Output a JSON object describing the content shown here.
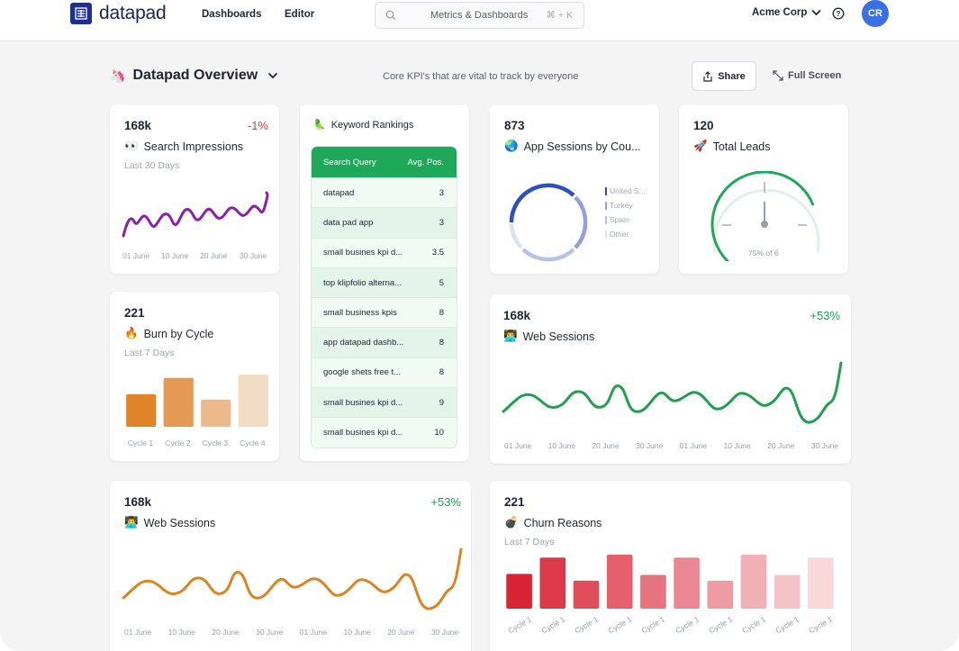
{
  "brand": {
    "name": "datapad",
    "logo_color": "#1e2f8f"
  },
  "nav": {
    "dashboards": "Dashboards",
    "editor": "Editor"
  },
  "search": {
    "placeholder": "Metrics & Dashboards",
    "shortcut": "⌘ + K"
  },
  "org": {
    "name": "Acme Corp"
  },
  "user": {
    "initials": "CR"
  },
  "header": {
    "emoji": "🦄",
    "title": "Datapad Overview",
    "subtitle": "Core KPI's that are vital to track by everyone",
    "share_label": "Share",
    "fullscreen_label": "Full Screen"
  },
  "cards": {
    "search_impressions": {
      "value": "168k",
      "change": "-1%",
      "emoji": "👀",
      "title": "Search Impressions",
      "period": "Last 30 Days",
      "x_labels": [
        "01 June",
        "10 June",
        "20 June",
        "30 June"
      ],
      "color": "#8b1fa9"
    },
    "keyword_rankings": {
      "emoji": "🦜",
      "title": "Keyword Rankings",
      "columns": [
        "Search Query",
        "Avg. Pos."
      ],
      "rows": [
        {
          "query": "datapad",
          "pos": "3"
        },
        {
          "query": "data pad app",
          "pos": "3"
        },
        {
          "query": "small busines kpi d...",
          "pos": "3.5"
        },
        {
          "query": "top klipfolio alterna...",
          "pos": "5"
        },
        {
          "query": "small business kpis",
          "pos": "8"
        },
        {
          "query": "app datapad dashb...",
          "pos": "8"
        },
        {
          "query": "google shets free t...",
          "pos": "8"
        },
        {
          "query": "small busines kpi d...",
          "pos": "9"
        },
        {
          "query": "small busines kpi d...",
          "pos": "10"
        }
      ]
    },
    "app_sessions": {
      "value": "873",
      "emoji": "🌏",
      "title": "App Sessions by Cou...",
      "legend": [
        {
          "label": "United S...",
          "color": "#2f4fc0"
        },
        {
          "label": "Turkey",
          "color": "#8fa0dd"
        },
        {
          "label": "Spain",
          "color": "#b6c2ea"
        },
        {
          "label": "Other",
          "color": "#dde2f3"
        }
      ]
    },
    "total_leads": {
      "value": "120",
      "emoji": "🚀",
      "title": "Total Leads",
      "gauge_caption": "75% of 6",
      "gauge_fraction": 0.75,
      "color": "#1ea85a"
    },
    "burn_by_cycle": {
      "value": "221",
      "emoji": "🔥",
      "title": "Burn by Cycle",
      "period": "Last 7 Days",
      "chart_data": {
        "type": "bar",
        "categories": [
          "Cycle 1",
          "Cycle 2",
          "Cycle 3",
          "Cycle 4"
        ],
        "values": [
          30,
          45,
          25,
          48
        ],
        "colors": [
          "#e0842a",
          "#e59b55",
          "#eeb98a",
          "#f3dcc4"
        ]
      }
    },
    "web_sessions_right": {
      "value": "168k",
      "change": "+53%",
      "emoji": "👨‍💻",
      "title": "Web Sessions",
      "x_labels": [
        "01 June",
        "10 June",
        "20 June",
        "30 June",
        "01 June",
        "10 June",
        "20 June",
        "30 June"
      ],
      "color": "#1ea04f"
    },
    "web_sessions_bottom": {
      "value": "168k",
      "change": "+53%",
      "emoji": "👨‍💻",
      "title": "Web Sessions",
      "x_labels": [
        "01 June",
        "10 June",
        "20 June",
        "30 June",
        "01 June",
        "10 June",
        "20 June",
        "30 June"
      ],
      "color": "#db8424"
    },
    "churn_reasons": {
      "value": "221",
      "emoji": "💣",
      "title": "Churn Reasons",
      "period": "Last 7 Days",
      "chart_data": {
        "type": "bar",
        "categories": [
          "Cycle 1",
          "Cycle 1",
          "Cycle 1",
          "Cycle 1",
          "Cycle 1",
          "Cycle 1",
          "Cycle 1",
          "Cycle 1",
          "Cycle 1",
          "Cycle 1"
        ],
        "values": [
          36,
          53,
          29,
          56,
          35,
          53,
          29,
          56,
          35,
          53
        ],
        "colors": [
          "#d82435",
          "#dc3a4a",
          "#e04e5c",
          "#e4606d",
          "#e7737f",
          "#eb8792",
          "#ee9ba4",
          "#f1afb6",
          "#f4c3c8",
          "#f7d7da"
        ]
      }
    }
  }
}
